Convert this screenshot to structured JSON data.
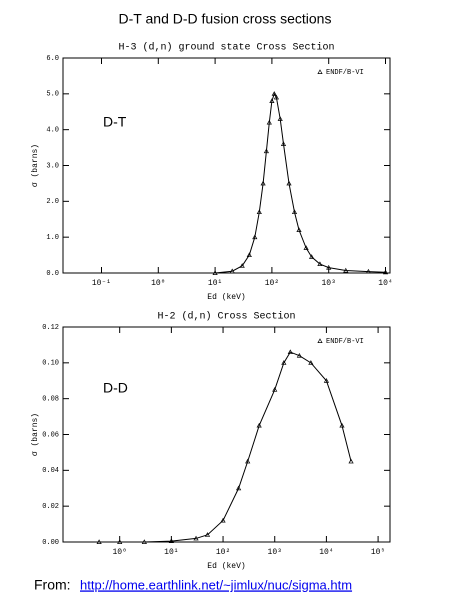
{
  "header": {
    "title": "D-T and D-D fusion cross sections"
  },
  "chart_data": [
    {
      "type": "line",
      "title": "H-3 (d,n) ground state Cross Section",
      "xlabel": "Ed (keV)",
      "ylabel": "σ (barns)",
      "annotation": "D-T",
      "log_x": true,
      "legend": "top-right",
      "xlim": [
        0.021,
        12000
      ],
      "xticks": [
        {
          "value": 0.1,
          "label": "10⁻¹"
        },
        {
          "value": 1,
          "label": "10⁰"
        },
        {
          "value": 10,
          "label": "10¹"
        },
        {
          "value": 100,
          "label": "10²"
        },
        {
          "value": 1000,
          "label": "10³"
        },
        {
          "value": 10000,
          "label": "10⁴"
        }
      ],
      "ylim": [
        0,
        6
      ],
      "yticks": [
        {
          "value": 0,
          "label": "0.0"
        },
        {
          "value": 1,
          "label": "1.0"
        },
        {
          "value": 2,
          "label": "2.0"
        },
        {
          "value": 3,
          "label": "3.0"
        },
        {
          "value": 4,
          "label": "4.0"
        },
        {
          "value": 5,
          "label": "5.0"
        },
        {
          "value": 6,
          "label": "6.0"
        }
      ],
      "x": [
        10,
        20,
        30,
        40,
        50,
        60,
        70,
        80,
        90,
        100,
        110,
        120,
        140,
        160,
        200,
        250,
        300,
        400,
        500,
        700,
        1000,
        2000,
        5000,
        10000
      ],
      "series": [
        {
          "name": "ENDF/B-VI",
          "color": "#000000",
          "values": [
            0.0,
            0.05,
            0.2,
            0.5,
            1.0,
            1.7,
            2.5,
            3.4,
            4.2,
            4.8,
            5.0,
            4.9,
            4.3,
            3.6,
            2.5,
            1.7,
            1.2,
            0.7,
            0.45,
            0.25,
            0.15,
            0.07,
            0.04,
            0.02
          ]
        }
      ]
    },
    {
      "type": "line",
      "title": "H-2 (d,n) Cross Section",
      "xlabel": "Ed (keV)",
      "ylabel": "σ (barns)",
      "annotation": "D-D",
      "log_x": true,
      "legend": "top-right",
      "xlim": [
        0.08,
        170000
      ],
      "xticks": [
        {
          "value": 1,
          "label": "10⁰"
        },
        {
          "value": 10,
          "label": "10¹"
        },
        {
          "value": 100,
          "label": "10²"
        },
        {
          "value": 1000,
          "label": "10³"
        },
        {
          "value": 10000,
          "label": "10⁴"
        },
        {
          "value": 100000,
          "label": "10⁵"
        }
      ],
      "ylim": [
        0,
        0.12
      ],
      "yticks": [
        {
          "value": 0,
          "label": "0.00"
        },
        {
          "value": 0.02,
          "label": "0.02"
        },
        {
          "value": 0.04,
          "label": "0.04"
        },
        {
          "value": 0.06,
          "label": "0.06"
        },
        {
          "value": 0.08,
          "label": "0.08"
        },
        {
          "value": 0.1,
          "label": "0.10"
        },
        {
          "value": 0.12,
          "label": "0.12"
        }
      ],
      "x": [
        0.4,
        1,
        3,
        10,
        30,
        50,
        100,
        200,
        300,
        500,
        1000,
        1500,
        2000,
        3000,
        5000,
        10000,
        20000,
        30000
      ],
      "series": [
        {
          "name": "ENDF/B-VI",
          "color": "#000000",
          "values": [
            0,
            0,
            0,
            0.0005,
            0.002,
            0.004,
            0.012,
            0.03,
            0.045,
            0.065,
            0.085,
            0.1,
            0.106,
            0.104,
            0.1,
            0.09,
            0.065,
            0.045
          ]
        }
      ]
    }
  ],
  "footer": {
    "prefix": "From:",
    "link": "http://home.earthlink.net/~jimlux/nuc/sigma.htm"
  }
}
